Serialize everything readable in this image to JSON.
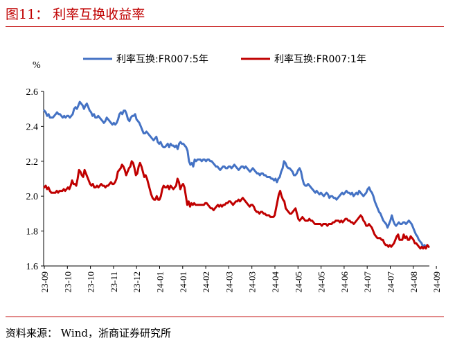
{
  "figure": {
    "title": "图11：  利率互换收益率",
    "source": "资料来源：  Wind，浙商证券研究所",
    "accent_color": "#c00000"
  },
  "chart_data": {
    "type": "line",
    "ylabel": "%",
    "ylim": [
      1.6,
      2.6
    ],
    "yticks": [
      "1.6",
      "1.8",
      "2.0",
      "2.2",
      "2.4",
      "2.6"
    ],
    "x_ticks": [
      "23-09",
      "23-10",
      "23-10",
      "23-11",
      "23-12",
      "24-01",
      "24-01",
      "24-02",
      "24-03",
      "24-03",
      "24-04",
      "24-05",
      "24-05",
      "24-06",
      "24-07",
      "24-07",
      "24-08",
      "24-09"
    ],
    "legend_position": "top",
    "grid": false,
    "series": [
      {
        "name": "利率互换:FR007:5年",
        "color": "#4472c4",
        "values": [
          2.49,
          2.48,
          2.46,
          2.47,
          2.45,
          2.45,
          2.45,
          2.46,
          2.47,
          2.48,
          2.47,
          2.47,
          2.46,
          2.45,
          2.46,
          2.45,
          2.46,
          2.46,
          2.45,
          2.46,
          2.47,
          2.5,
          2.51,
          2.5,
          2.52,
          2.54,
          2.53,
          2.52,
          2.5,
          2.52,
          2.53,
          2.51,
          2.49,
          2.48,
          2.46,
          2.47,
          2.45,
          2.45,
          2.46,
          2.45,
          2.44,
          2.43,
          2.42,
          2.43,
          2.45,
          2.44,
          2.43,
          2.42,
          2.41,
          2.42,
          2.41,
          2.42,
          2.44,
          2.47,
          2.48,
          2.47,
          2.49,
          2.49,
          2.47,
          2.44,
          2.43,
          2.45,
          2.46,
          2.46,
          2.47,
          2.44,
          2.43,
          2.42,
          2.4,
          2.38,
          2.36,
          2.36,
          2.37,
          2.36,
          2.35,
          2.34,
          2.33,
          2.32,
          2.33,
          2.34,
          2.31,
          2.3,
          2.31,
          2.29,
          2.28,
          2.28,
          2.29,
          2.3,
          2.28,
          2.3,
          2.29,
          2.29,
          2.28,
          2.29,
          2.27,
          2.3,
          2.31,
          2.3,
          2.3,
          2.29,
          2.28,
          2.26,
          2.2,
          2.18,
          2.19,
          2.17,
          2.21,
          2.2,
          2.21,
          2.21,
          2.21,
          2.2,
          2.21,
          2.21,
          2.2,
          2.21,
          2.21,
          2.2,
          2.2,
          2.19,
          2.18,
          2.17,
          2.17,
          2.16,
          2.15,
          2.16,
          2.17,
          2.17,
          2.16,
          2.16,
          2.17,
          2.17,
          2.16,
          2.17,
          2.18,
          2.17,
          2.16,
          2.15,
          2.16,
          2.17,
          2.17,
          2.16,
          2.17,
          2.16,
          2.15,
          2.14,
          2.15,
          2.16,
          2.15,
          2.14,
          2.13,
          2.13,
          2.12,
          2.13,
          2.13,
          2.12,
          2.12,
          2.11,
          2.11,
          2.11,
          2.1,
          2.1,
          2.09,
          2.1,
          2.08,
          2.1,
          2.11,
          2.14,
          2.16,
          2.2,
          2.19,
          2.17,
          2.16,
          2.16,
          2.15,
          2.14,
          2.12,
          2.12,
          2.13,
          2.15,
          2.16,
          2.14,
          2.1,
          2.07,
          2.06,
          2.06,
          2.07,
          2.06,
          2.05,
          2.04,
          2.03,
          2.02,
          2.03,
          2.02,
          2.01,
          2.02,
          2.01,
          2.0,
          2.01,
          2.02,
          2.01,
          1.99,
          2.0,
          2.0,
          1.99,
          1.99,
          1.98,
          1.99,
          2.0,
          2.01,
          2.02,
          2.01,
          2.02,
          2.03,
          2.02,
          2.02,
          2.01,
          2.02,
          2.0,
          2.01,
          2.02,
          2.01,
          2.03,
          2.02,
          2.01,
          2.0,
          2.01,
          2.02,
          2.04,
          2.05,
          2.03,
          2.02,
          2.0,
          1.97,
          1.95,
          1.93,
          1.91,
          1.9,
          1.88,
          1.86,
          1.85,
          1.84,
          1.82,
          1.84,
          1.86,
          1.89,
          1.86,
          1.84,
          1.83,
          1.84,
          1.85,
          1.84,
          1.84,
          1.85,
          1.85,
          1.84,
          1.85,
          1.86,
          1.85,
          1.84,
          1.82,
          1.8,
          1.78,
          1.77,
          1.75,
          1.74,
          1.73,
          1.71,
          1.72,
          1.71,
          1.72,
          1.71
        ]
      },
      {
        "name": "利率互换:FR007:1年",
        "color": "#c00000",
        "values": [
          2.05,
          2.06,
          2.04,
          2.05,
          2.03,
          2.02,
          2.02,
          2.02,
          2.02,
          2.03,
          2.02,
          2.03,
          2.03,
          2.03,
          2.04,
          2.03,
          2.04,
          2.05,
          2.04,
          2.06,
          2.09,
          2.07,
          2.07,
          2.06,
          2.1,
          2.15,
          2.14,
          2.12,
          2.11,
          2.15,
          2.13,
          2.11,
          2.09,
          2.07,
          2.06,
          2.07,
          2.05,
          2.05,
          2.06,
          2.05,
          2.06,
          2.07,
          2.06,
          2.06,
          2.05,
          2.06,
          2.06,
          2.07,
          2.08,
          2.07,
          2.07,
          2.08,
          2.1,
          2.14,
          2.15,
          2.16,
          2.18,
          2.17,
          2.15,
          2.12,
          2.14,
          2.16,
          2.17,
          2.2,
          2.19,
          2.16,
          2.12,
          2.13,
          2.17,
          2.19,
          2.17,
          2.14,
          2.11,
          2.12,
          2.1,
          2.07,
          2.04,
          2.01,
          1.99,
          1.98,
          1.98,
          2.0,
          1.98,
          1.98,
          2.0,
          2.04,
          2.06,
          2.05,
          2.05,
          2.06,
          2.04,
          2.06,
          2.05,
          2.04,
          2.05,
          2.06,
          2.1,
          2.08,
          2.04,
          2.06,
          2.07,
          2.05,
          2.0,
          1.95,
          1.97,
          1.94,
          1.96,
          1.95,
          1.96,
          1.95,
          1.95,
          1.95,
          1.95,
          1.95,
          1.95,
          1.95,
          1.96,
          1.96,
          1.95,
          1.94,
          1.93,
          1.93,
          1.92,
          1.93,
          1.94,
          1.95,
          1.94,
          1.95,
          1.94,
          1.95,
          1.95,
          1.96,
          1.96,
          1.97,
          1.97,
          1.96,
          1.95,
          1.96,
          1.97,
          1.97,
          1.98,
          1.97,
          1.98,
          1.99,
          1.98,
          1.97,
          1.96,
          1.95,
          1.94,
          1.95,
          1.95,
          1.94,
          1.92,
          1.91,
          1.91,
          1.9,
          1.91,
          1.91,
          1.9,
          1.9,
          1.89,
          1.89,
          1.89,
          1.88,
          1.88,
          1.88,
          1.89,
          1.93,
          1.97,
          2.01,
          2.03,
          2.0,
          1.98,
          1.97,
          1.93,
          1.92,
          1.91,
          1.9,
          1.9,
          1.91,
          1.92,
          1.93,
          1.9,
          1.87,
          1.86,
          1.87,
          1.88,
          1.87,
          1.86,
          1.86,
          1.86,
          1.87,
          1.86,
          1.86,
          1.85,
          1.84,
          1.84,
          1.84,
          1.84,
          1.84,
          1.83,
          1.84,
          1.84,
          1.84,
          1.83,
          1.84,
          1.84,
          1.84,
          1.85,
          1.85,
          1.86,
          1.86,
          1.86,
          1.85,
          1.86,
          1.85,
          1.86,
          1.87,
          1.87,
          1.86,
          1.86,
          1.85,
          1.85,
          1.84,
          1.85,
          1.86,
          1.87,
          1.88,
          1.89,
          1.88,
          1.86,
          1.85,
          1.83,
          1.83,
          1.84,
          1.83,
          1.82,
          1.8,
          1.78,
          1.77,
          1.76,
          1.76,
          1.76,
          1.75,
          1.75,
          1.73,
          1.72,
          1.72,
          1.71,
          1.72,
          1.71,
          1.72,
          1.73,
          1.75,
          1.77,
          1.78,
          1.75,
          1.75,
          1.75,
          1.78,
          1.76,
          1.77,
          1.75,
          1.75,
          1.77,
          1.76,
          1.75,
          1.73,
          1.73,
          1.72,
          1.71,
          1.7,
          1.71,
          1.7,
          1.71,
          1.7,
          1.72,
          1.71
        ]
      }
    ]
  }
}
